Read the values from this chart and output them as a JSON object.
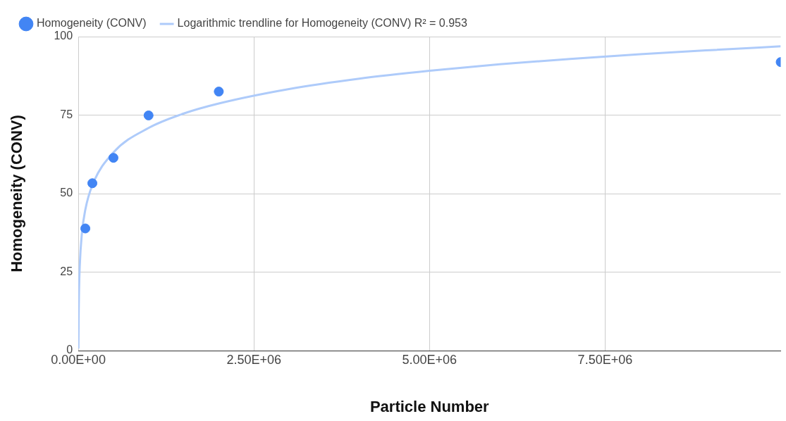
{
  "chart_data": {
    "type": "scatter",
    "xlabel": "Particle Number",
    "ylabel": "Homogeneity (CONV)",
    "xlim": [
      0,
      10000000
    ],
    "xticks": [
      {
        "value": 0,
        "label": "0.00E+00"
      },
      {
        "value": 2500000,
        "label": "2.50E+06"
      },
      {
        "value": 5000000,
        "label": "5.00E+06"
      },
      {
        "value": 7500000,
        "label": "7.50E+06"
      }
    ],
    "ylim": [
      0,
      100
    ],
    "yticks": [
      0,
      25,
      50,
      75,
      100
    ],
    "grid": true,
    "legend": "top left",
    "marker": "circle",
    "series": [
      {
        "name": "Homogeneity (CONV)",
        "color": "#4285f4",
        "x": [
          100000,
          200000,
          500000,
          1000000,
          2000000,
          10000000
        ],
        "values": [
          38.9,
          53.3,
          61.4,
          74.9,
          82.5,
          91.9
        ]
      },
      {
        "name": "Logarithmic trendline for Homogeneity (CONV) R² = 0.953",
        "type": "line",
        "color": "#aecbfa",
        "marker": "none",
        "x": [
          2000,
          5000,
          10000,
          20000,
          50000,
          100000,
          200000,
          500000,
          1000000,
          1500000,
          2000000,
          3000000,
          4000000,
          5000000,
          6000000,
          7000000,
          8000000,
          9000000,
          10000000
        ],
        "values": [
          0.7,
          11.0,
          18.9,
          26.7,
          37.1,
          44.9,
          52.7,
          63.1,
          70.9,
          75.5,
          78.7,
          83.3,
          86.6,
          89.1,
          91.2,
          92.9,
          94.4,
          95.7,
          96.9
        ]
      }
    ]
  }
}
